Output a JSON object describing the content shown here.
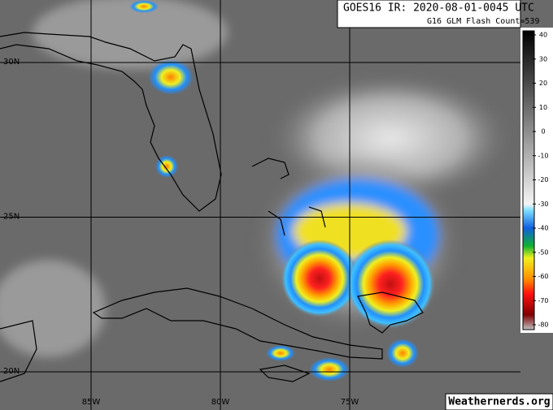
{
  "header": {
    "title": "GOES16 IR: 2020-08-01-0045 UTC",
    "subtitle": "G16 GLM Flash Count=539"
  },
  "colorbar": {
    "ticks": [
      40,
      30,
      20,
      10,
      0,
      -10,
      -20,
      -30,
      -40,
      -50,
      -60,
      -70,
      -80
    ]
  },
  "grid": {
    "lat": [
      {
        "value": 30,
        "label": "30N"
      },
      {
        "value": 25,
        "label": "25N"
      },
      {
        "value": 20,
        "label": "20N"
      }
    ],
    "lon": [
      {
        "value": -85,
        "label": "85W"
      },
      {
        "value": -80,
        "label": "80W"
      },
      {
        "value": -75,
        "label": "75W"
      }
    ]
  },
  "credit": "Weathernerds.org"
}
